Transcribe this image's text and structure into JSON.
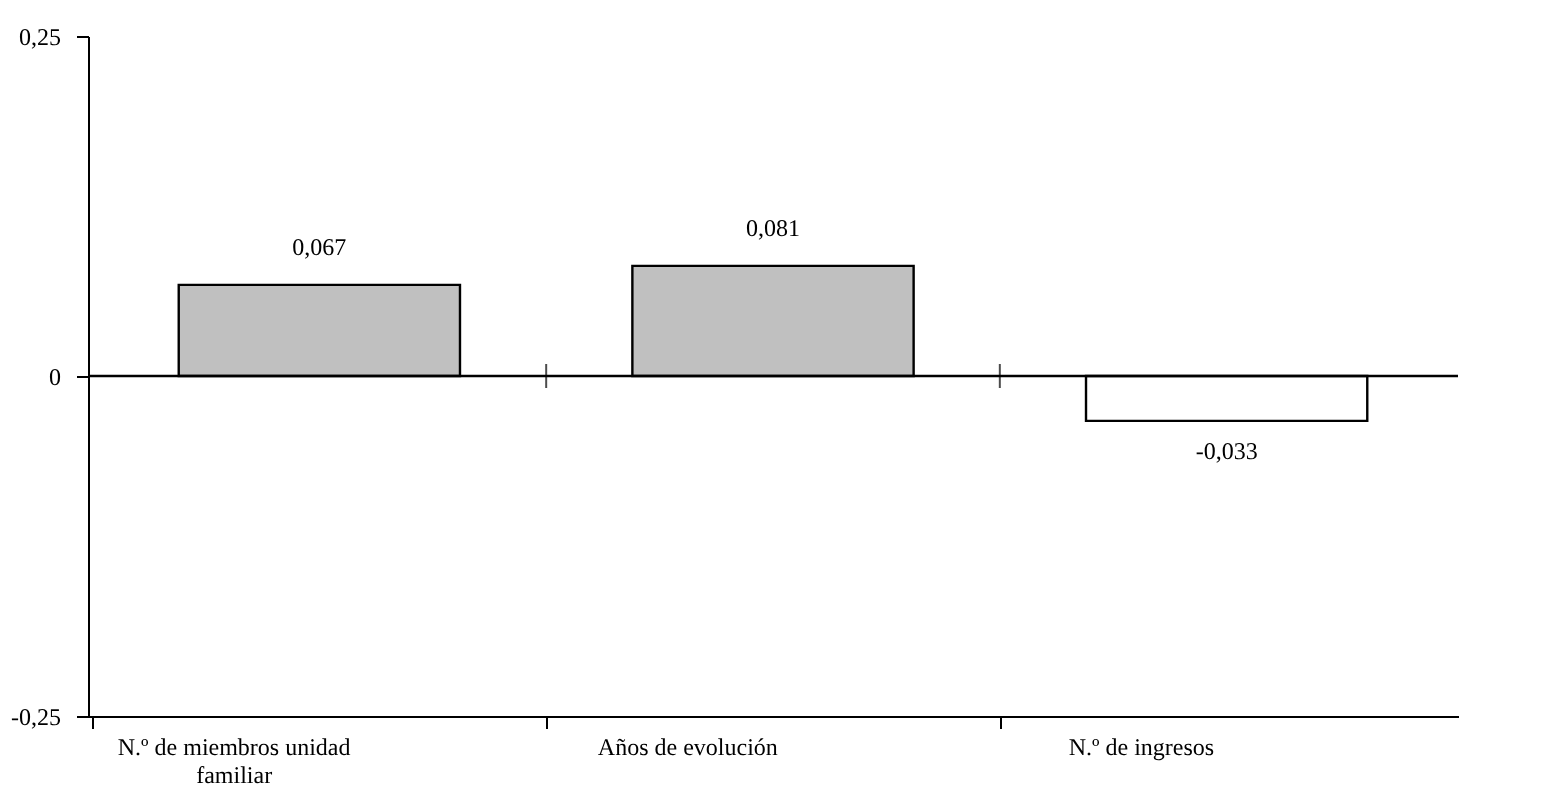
{
  "chart_data": {
    "type": "bar",
    "categories": [
      "N.º de miembros unidad familiar",
      "Años de evolución",
      "N.º de ingresos"
    ],
    "values": [
      0.067,
      0.081,
      -0.033
    ],
    "colors": [
      "#c0c0c0",
      "#c0c0c0",
      "#ffffff"
    ],
    "value_labels": [
      "0,067",
      "0,081",
      "-0,033"
    ],
    "ylim": [
      -0.25,
      0.25
    ],
    "yticks": [
      {
        "value": -0.25,
        "label": "-0,25"
      },
      {
        "value": 0,
        "label": "0"
      },
      {
        "value": 0.25,
        "label": "0,25"
      }
    ],
    "ref_lines": [
      {
        "axis": "y",
        "value": 0
      }
    ]
  }
}
